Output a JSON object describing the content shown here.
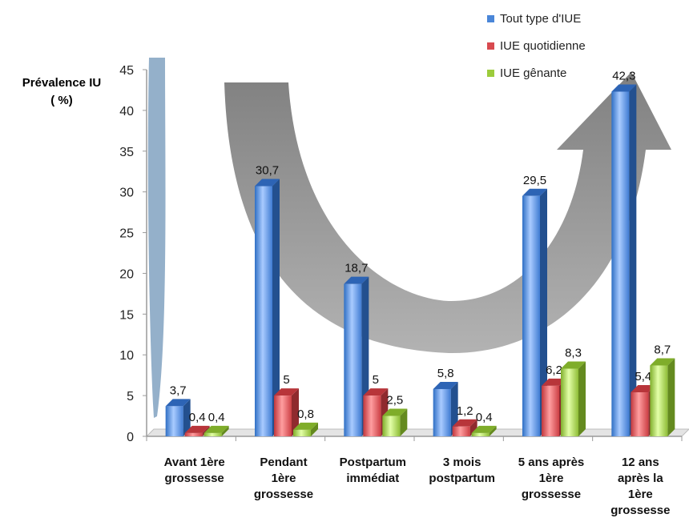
{
  "chart_data": {
    "type": "bar",
    "ylabel": "Prévalence IU\n( %)",
    "ylim": [
      0,
      45
    ],
    "yticks": [
      0,
      5,
      10,
      15,
      20,
      25,
      30,
      35,
      40,
      45
    ],
    "categories": [
      "Avant 1ère\ngrossesse",
      "Pendant\n1ère\ngrossesse",
      "Postpartum\nimmédiat",
      "3 mois\npostpartum",
      "5 ans après\n1ère\ngrossesse",
      "12 ans\naprès la\n1ère\ngrossesse"
    ],
    "series": [
      {
        "name": "Tout type d'IUE",
        "values": [
          3.7,
          30.7,
          18.7,
          5.8,
          29.5,
          42.3
        ],
        "labels": [
          "3,7",
          "30,7",
          "18,7",
          "5,8",
          "29,5",
          "42,3"
        ],
        "color": "#4a86d8"
      },
      {
        "name": "IUE quotidienne",
        "values": [
          0.4,
          5,
          5,
          1.2,
          6.2,
          5.4
        ],
        "labels": [
          "0,4",
          "5",
          "5",
          "1,2",
          "6,2",
          "5,4"
        ],
        "color": "#d84a4f"
      },
      {
        "name": "IUE gênante",
        "values": [
          0.4,
          0.8,
          2.5,
          0.4,
          8.3,
          8.7
        ],
        "labels": [
          "0,4",
          "0,8",
          "2,5",
          "0,4",
          "8,3",
          "8,7"
        ],
        "color": "#9ccc3c"
      }
    ],
    "legend_position": "top-right",
    "grid": false
  }
}
